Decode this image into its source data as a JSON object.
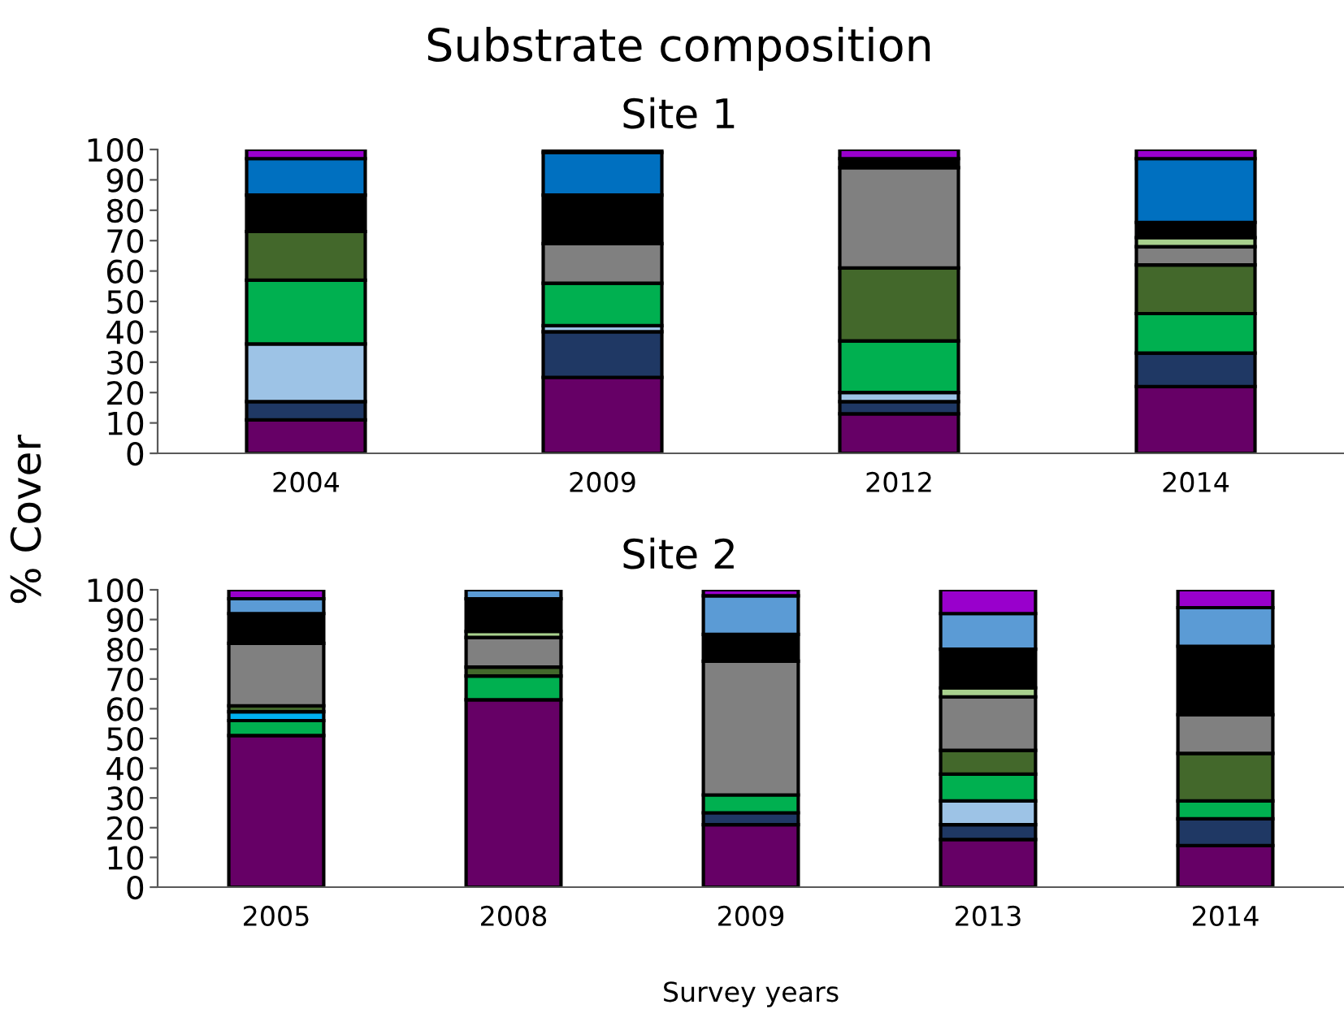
{
  "chart_data": [
    {
      "type": "bar",
      "stacked": true,
      "title": "Substrate composition",
      "subtitle": "Site 1",
      "ylabel": "% Cover",
      "categories": [
        "2004",
        "2009",
        "2012",
        "2014"
      ],
      "ylim": [
        0,
        100
      ],
      "yticks": [
        0,
        10,
        20,
        30,
        40,
        50,
        60,
        70,
        80,
        90,
        100
      ],
      "series": [
        {
          "color": "#660066",
          "values": [
            11,
            25,
            13,
            22
          ]
        },
        {
          "color": "#1f3864",
          "values": [
            6,
            15,
            4,
            11
          ]
        },
        {
          "color": "#9dc3e6",
          "values": [
            19,
            2,
            3,
            null
          ]
        },
        {
          "color": "#00b050",
          "values": [
            21,
            14,
            17,
            13
          ]
        },
        {
          "color": "#43682b",
          "values": [
            16,
            null,
            24,
            16
          ]
        },
        {
          "color": "#808080",
          "values": [
            null,
            13,
            33,
            6
          ]
        },
        {
          "color": "#a9d18e",
          "values": [
            null,
            null,
            null,
            3
          ]
        },
        {
          "color": "#000000",
          "values": [
            12,
            16,
            3,
            5
          ]
        },
        {
          "color": "#0070c0",
          "values": [
            12,
            14,
            null,
            21
          ]
        },
        {
          "color": "#9900cc",
          "values": [
            3,
            1,
            3,
            3
          ]
        }
      ]
    },
    {
      "type": "bar",
      "stacked": true,
      "subtitle": "Site 2",
      "xlabel": "Survey years",
      "categories": [
        "2005",
        "2008",
        "2009",
        "2013",
        "2014"
      ],
      "ylim": [
        0,
        100
      ],
      "yticks": [
        0,
        10,
        20,
        30,
        40,
        50,
        60,
        70,
        80,
        90,
        100
      ],
      "series": [
        {
          "color": "#660066",
          "values": [
            51,
            63,
            21,
            16,
            14
          ]
        },
        {
          "color": "#1f3864",
          "values": [
            null,
            null,
            4,
            5,
            9
          ]
        },
        {
          "color": "#9dc3e6",
          "values": [
            null,
            null,
            null,
            8,
            null
          ]
        },
        {
          "color": "#00b050",
          "values": [
            5,
            8,
            6,
            9,
            6
          ]
        },
        {
          "color": "#00b0f0",
          "values": [
            3,
            null,
            null,
            null,
            null
          ]
        },
        {
          "color": "#43682b",
          "values": [
            2,
            3,
            null,
            8,
            16
          ]
        },
        {
          "color": "#808080",
          "values": [
            21,
            10,
            45,
            18,
            13
          ]
        },
        {
          "color": "#a9d18e",
          "values": [
            null,
            2,
            null,
            3,
            null
          ]
        },
        {
          "color": "#000000",
          "values": [
            10,
            11,
            9,
            13,
            23
          ]
        },
        {
          "color": "#5b9bd5",
          "values": [
            5,
            3,
            13,
            12,
            13
          ]
        },
        {
          "color": "#9900cc",
          "values": [
            3,
            null,
            2,
            8,
            6
          ]
        }
      ]
    }
  ]
}
